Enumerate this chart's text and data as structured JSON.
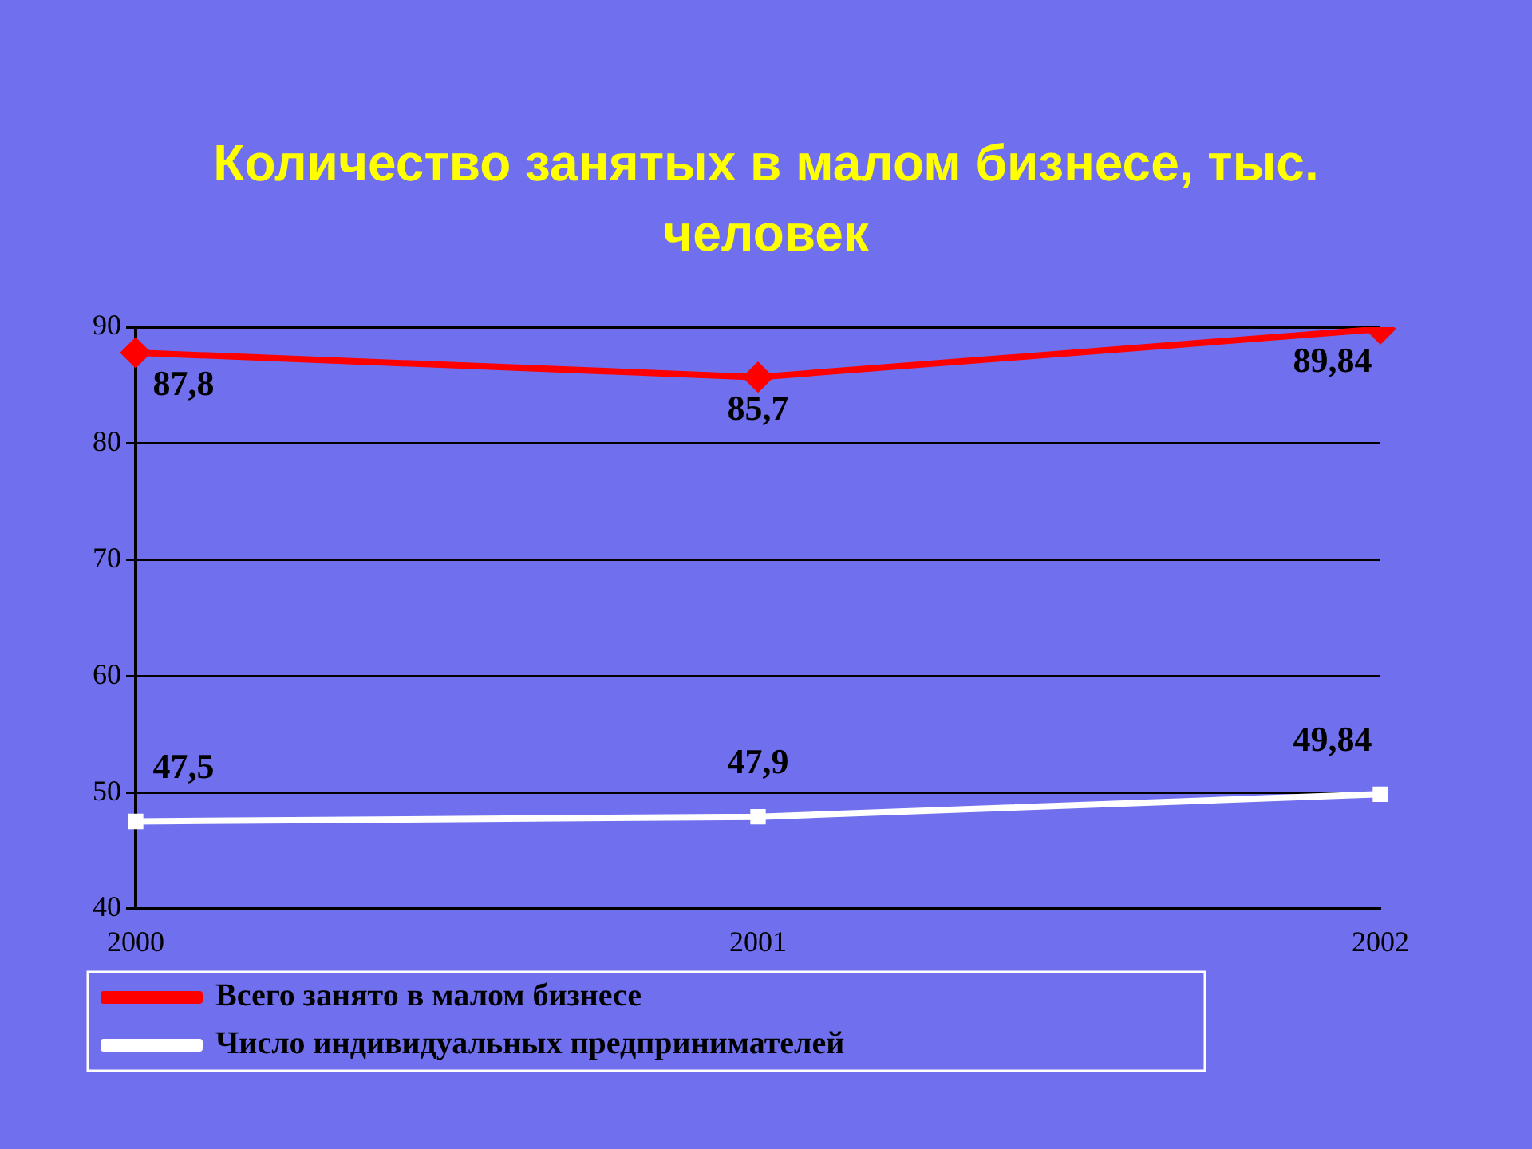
{
  "chart_data": {
    "type": "line",
    "title": "Количество занятых в малом бизнесе, тыс. человек",
    "categories": [
      "2000",
      "2001",
      "2002"
    ],
    "series": [
      {
        "name": "Всего занято в малом бизнесе",
        "color": "#ff0000",
        "marker": "diamond",
        "values": [
          87.8,
          85.7,
          89.84
        ]
      },
      {
        "name": "Число индивидуальных предпринимателей",
        "color": "#ffffff",
        "marker": "square",
        "values": [
          47.5,
          47.9,
          49.84
        ]
      }
    ],
    "value_labels": [
      [
        "87,8",
        "85,7",
        "89,84"
      ],
      [
        "47,5",
        "47,9",
        "49,84"
      ]
    ],
    "ylim": [
      40,
      90
    ],
    "yticks": [
      40,
      50,
      60,
      70,
      80,
      90
    ],
    "grid": "y",
    "legend": "bottom",
    "line_style": "solid"
  }
}
